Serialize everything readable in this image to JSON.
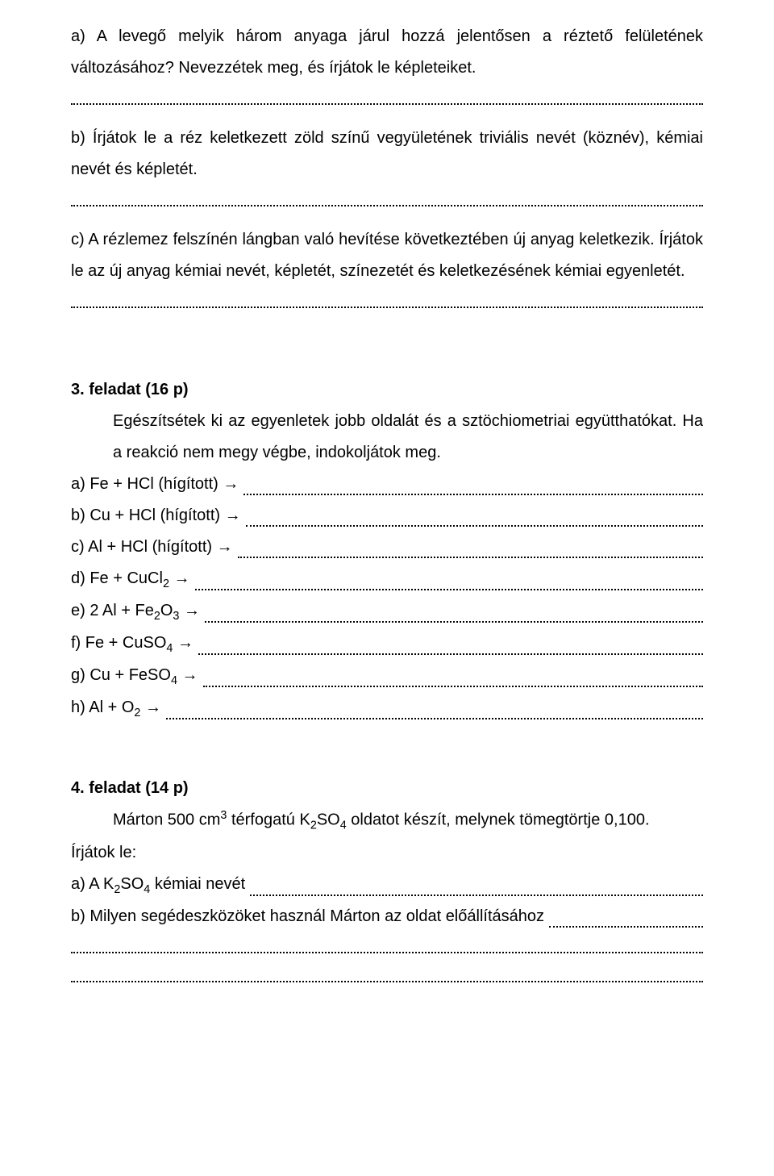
{
  "intro": {
    "q_a": "a) A levegő melyik három anyaga járul hozzá jelentősen a réztető felületének változásához? Nevezzétek meg, és írjátok le képleteiket.",
    "q_b": "b) Írjátok le a réz keletkezett zöld színű vegyületének triviális nevét (köznév), kémiai nevét és képletét.",
    "q_c_1": "c) A rézlemez felszínén lángban való hevítése következtében új anyag keletkezik. Írjátok le az új anyag kémiai nevét, képletét, színezetét és keletkezésének kémiai egyenletét."
  },
  "task3": {
    "header": "3. feladat   (16 p)",
    "desc": "Egészítsétek ki az egyenletek jobb oldalát és a sztöchiometriai együtthatókat. Ha a reakció nem megy végbe, indokoljátok meg.",
    "a": "a) Fe + HCl (hígított)",
    "b": "b) Cu + HCl (hígított)",
    "c": "c) Al + HCl (hígított)",
    "d": "d) Fe + CuCl",
    "d_sub": "2",
    "e_pre": "e) 2 Al + Fe",
    "e_sub1": "2",
    "e_mid": "O",
    "e_sub2": "3",
    "f_pre": "f) Fe + CuSO",
    "f_sub": "4",
    "g_pre": "g) Cu + FeSO",
    "g_sub": "4",
    "h_pre": "h) Al + O",
    "h_sub": "2",
    "arrow": "→"
  },
  "task4": {
    "header": "4. feladat (14 p)",
    "desc_pre": "Márton 500 cm",
    "desc_sup": "3",
    "desc_mid": " térfogatú K",
    "desc_sub1": "2",
    "desc_mid2": "SO",
    "desc_sub2": "4",
    "desc_post": " oldatot készít, melynek tömegtörtje 0,100.",
    "write": "Írjátok le:",
    "a_pre": "a) A K",
    "a_sub1": "2",
    "a_mid": "SO",
    "a_sub2": "4",
    "a_post": " kémiai nevét",
    "b": "b) Milyen segédeszközöket használ Márton az oldat előállításához"
  },
  "colors": {
    "text": "#000000",
    "bg": "#ffffff"
  }
}
